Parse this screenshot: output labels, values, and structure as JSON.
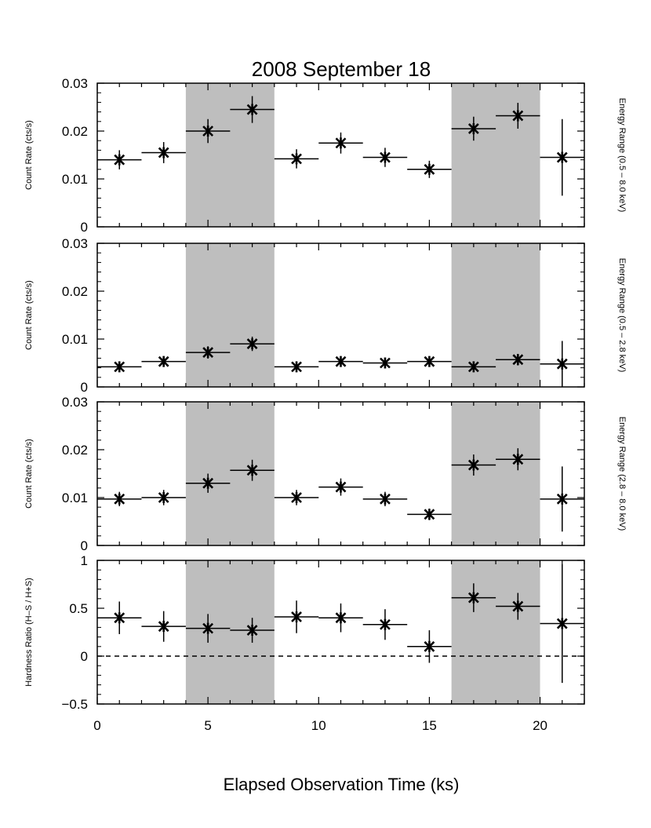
{
  "chart_data": {
    "type": "scatter",
    "title": "2008 September 18",
    "xlabel": "Elapsed Observation Time (ks)",
    "xlim": [
      0,
      22
    ],
    "xticks": [
      "0",
      "5",
      "10",
      "15",
      "20"
    ],
    "shaded_intervals": [
      [
        4,
        8
      ],
      [
        16,
        20
      ]
    ],
    "colors": {
      "shade": "#bebebe",
      "ink": "#000000"
    },
    "panels": [
      {
        "ylabel": "Count Rate (cts/s)",
        "range_label": "Energy Range (0.5 – 8.0 keV)",
        "ylim": [
          0,
          0.03
        ],
        "yticks": [
          "0",
          "0.01",
          "0.02",
          "0.03"
        ],
        "points": [
          {
            "x": 1,
            "xerr": 1,
            "y": 0.014,
            "yerr": 0.002
          },
          {
            "x": 3,
            "xerr": 1,
            "y": 0.0155,
            "yerr": 0.0022
          },
          {
            "x": 5,
            "xerr": 1,
            "y": 0.02,
            "yerr": 0.0025
          },
          {
            "x": 7,
            "xerr": 1,
            "y": 0.0245,
            "yerr": 0.0028
          },
          {
            "x": 9,
            "xerr": 1,
            "y": 0.0142,
            "yerr": 0.002
          },
          {
            "x": 11,
            "xerr": 1,
            "y": 0.0175,
            "yerr": 0.0022
          },
          {
            "x": 13,
            "xerr": 1,
            "y": 0.0145,
            "yerr": 0.002
          },
          {
            "x": 15,
            "xerr": 1,
            "y": 0.012,
            "yerr": 0.0018
          },
          {
            "x": 17,
            "xerr": 1,
            "y": 0.0205,
            "yerr": 0.0025
          },
          {
            "x": 19,
            "xerr": 1,
            "y": 0.0232,
            "yerr": 0.0027
          },
          {
            "x": 21,
            "xerr": 1,
            "y": 0.0145,
            "yerr": 0.008
          }
        ]
      },
      {
        "ylabel": "Count Rate (cts/s)",
        "range_label": "Energy Range (0.5 – 2.8 keV)",
        "ylim": [
          0,
          0.03
        ],
        "yticks": [
          "0",
          "0.01",
          "0.02",
          "0.03"
        ],
        "points": [
          {
            "x": 1,
            "xerr": 1,
            "y": 0.0042,
            "yerr": 0.001
          },
          {
            "x": 3,
            "xerr": 1,
            "y": 0.0053,
            "yerr": 0.0011
          },
          {
            "x": 5,
            "xerr": 1,
            "y": 0.0072,
            "yerr": 0.0013
          },
          {
            "x": 7,
            "xerr": 1,
            "y": 0.009,
            "yerr": 0.0015
          },
          {
            "x": 9,
            "xerr": 1,
            "y": 0.0042,
            "yerr": 0.001
          },
          {
            "x": 11,
            "xerr": 1,
            "y": 0.0053,
            "yerr": 0.0011
          },
          {
            "x": 13,
            "xerr": 1,
            "y": 0.005,
            "yerr": 0.001
          },
          {
            "x": 15,
            "xerr": 1,
            "y": 0.0053,
            "yerr": 0.0011
          },
          {
            "x": 17,
            "xerr": 1,
            "y": 0.0042,
            "yerr": 0.001
          },
          {
            "x": 19,
            "xerr": 1,
            "y": 0.0057,
            "yerr": 0.0012
          },
          {
            "x": 21,
            "xerr": 1,
            "y": 0.0048,
            "yerr": 0.0048
          }
        ]
      },
      {
        "ylabel": "Count Rate (cts/s)",
        "range_label": "Energy Range (2.8 – 8.0 keV)",
        "ylim": [
          0,
          0.03
        ],
        "yticks": [
          "0",
          "0.01",
          "0.02",
          "0.03"
        ],
        "points": [
          {
            "x": 1,
            "xerr": 1,
            "y": 0.0097,
            "yerr": 0.0015
          },
          {
            "x": 3,
            "xerr": 1,
            "y": 0.01,
            "yerr": 0.0016
          },
          {
            "x": 5,
            "xerr": 1,
            "y": 0.013,
            "yerr": 0.002
          },
          {
            "x": 7,
            "xerr": 1,
            "y": 0.0157,
            "yerr": 0.0022
          },
          {
            "x": 9,
            "xerr": 1,
            "y": 0.01,
            "yerr": 0.0016
          },
          {
            "x": 11,
            "xerr": 1,
            "y": 0.0122,
            "yerr": 0.0018
          },
          {
            "x": 13,
            "xerr": 1,
            "y": 0.0097,
            "yerr": 0.0015
          },
          {
            "x": 15,
            "xerr": 1,
            "y": 0.0065,
            "yerr": 0.0012
          },
          {
            "x": 17,
            "xerr": 1,
            "y": 0.0168,
            "yerr": 0.0022
          },
          {
            "x": 19,
            "xerr": 1,
            "y": 0.018,
            "yerr": 0.0023
          },
          {
            "x": 21,
            "xerr": 1,
            "y": 0.0097,
            "yerr": 0.0068
          }
        ]
      },
      {
        "ylabel": "Hardness Ratio (H–S / H+S)",
        "range_label": "",
        "ylim": [
          -0.5,
          1
        ],
        "yticks": [
          "−0.5",
          "0",
          "0.5",
          "1"
        ],
        "reference_line": 0,
        "points": [
          {
            "x": 1,
            "xerr": 1,
            "y": 0.4,
            "yerr": 0.17
          },
          {
            "x": 3,
            "xerr": 1,
            "y": 0.31,
            "yerr": 0.16
          },
          {
            "x": 5,
            "xerr": 1,
            "y": 0.29,
            "yerr": 0.15
          },
          {
            "x": 7,
            "xerr": 1,
            "y": 0.27,
            "yerr": 0.13
          },
          {
            "x": 9,
            "xerr": 1,
            "y": 0.41,
            "yerr": 0.17
          },
          {
            "x": 11,
            "xerr": 1,
            "y": 0.4,
            "yerr": 0.15
          },
          {
            "x": 13,
            "xerr": 1,
            "y": 0.33,
            "yerr": 0.16
          },
          {
            "x": 15,
            "xerr": 1,
            "y": 0.1,
            "yerr": 0.17
          },
          {
            "x": 17,
            "xerr": 1,
            "y": 0.61,
            "yerr": 0.15
          },
          {
            "x": 19,
            "xerr": 1,
            "y": 0.52,
            "yerr": 0.14
          },
          {
            "x": 21,
            "xerr": 1,
            "y": 0.34,
            "yerr": 0.62
          }
        ]
      }
    ]
  }
}
